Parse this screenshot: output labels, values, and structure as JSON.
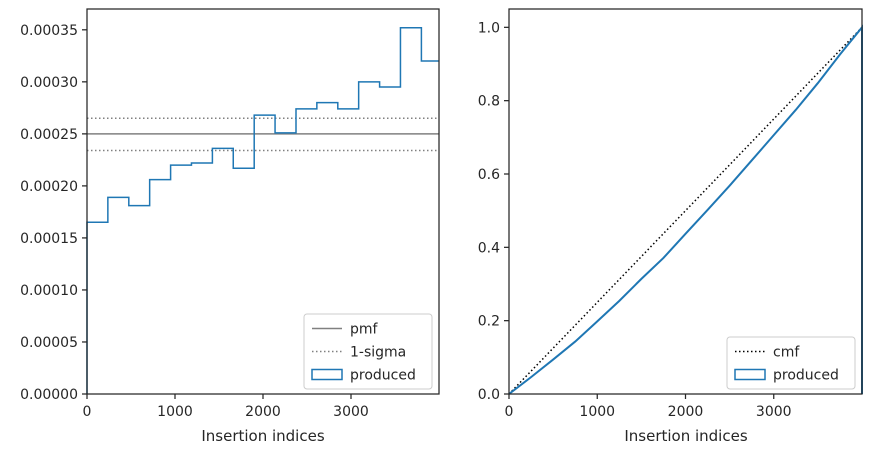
{
  "chart_data": [
    {
      "type": "histogram-step",
      "xlabel": "Insertion indices",
      "ylabel": "",
      "xlim": [
        0,
        4000
      ],
      "ylim": [
        0,
        0.00037
      ],
      "xticks": [
        0,
        1000,
        2000,
        3000
      ],
      "xtick_labels": [
        "0",
        "1000",
        "2000",
        "3000"
      ],
      "yticks": [
        0,
        5e-05,
        0.0001,
        0.00015,
        0.0002,
        0.00025,
        0.0003,
        0.00035
      ],
      "ytick_labels": [
        "0.00000",
        "0.00005",
        "0.00010",
        "0.00015",
        "0.00020",
        "0.00025",
        "0.00030",
        "0.00035"
      ],
      "grid": false,
      "legend": {
        "placement": "lower-right",
        "entries": [
          {
            "label": "pmf",
            "style": "solid",
            "color": "#808080"
          },
          {
            "label": "1-sigma",
            "style": "dotted",
            "color": "#808080"
          },
          {
            "label": "produced",
            "style": "step",
            "color": "#1f77b4"
          }
        ]
      },
      "reference_lines": {
        "pmf": 0.00025,
        "sigma_upper": 0.000265,
        "sigma_lower": 0.000234
      },
      "bin_edges": [
        0,
        237,
        475,
        712,
        950,
        1187,
        1425,
        1662,
        1900,
        2137,
        2375,
        2612,
        2850,
        3087,
        3325,
        3562,
        3800,
        4000
      ],
      "series": [
        {
          "name": "produced",
          "color": "#1f77b4",
          "values": [
            0.000165,
            0.000189,
            0.000181,
            0.000206,
            0.00022,
            0.000222,
            0.000236,
            0.000217,
            0.000268,
            0.000251,
            0.000274,
            0.00028,
            0.000274,
            0.0003,
            0.000295,
            0.000352,
            0.00032
          ]
        }
      ]
    },
    {
      "type": "line",
      "xlabel": "Insertion indices",
      "ylabel": "",
      "xlim": [
        0,
        4000
      ],
      "ylim": [
        0,
        1.05
      ],
      "xticks": [
        0,
        1000,
        2000,
        3000
      ],
      "xtick_labels": [
        "0",
        "1000",
        "2000",
        "3000"
      ],
      "yticks": [
        0,
        0.2,
        0.4,
        0.6,
        0.8,
        1.0
      ],
      "ytick_labels": [
        "0.0",
        "0.2",
        "0.4",
        "0.6",
        "0.8",
        "1.0"
      ],
      "grid": false,
      "legend": {
        "placement": "lower-right",
        "entries": [
          {
            "label": "cmf",
            "style": "dotted",
            "color": "#000000"
          },
          {
            "label": "produced",
            "style": "step",
            "color": "#1f77b4"
          }
        ]
      },
      "series": [
        {
          "name": "cmf",
          "color": "#000000",
          "style": "dotted",
          "x": [
            0,
            4000
          ],
          "y": [
            0,
            1.0
          ]
        },
        {
          "name": "produced",
          "color": "#1f77b4",
          "x": [
            0,
            250,
            500,
            750,
            1000,
            1250,
            1500,
            1750,
            2000,
            2250,
            2500,
            2750,
            3000,
            3250,
            3500,
            3750,
            4000
          ],
          "y": [
            0,
            0.046,
            0.094,
            0.143,
            0.198,
            0.254,
            0.314,
            0.371,
            0.437,
            0.502,
            0.568,
            0.637,
            0.706,
            0.775,
            0.848,
            0.926,
            1.0
          ]
        }
      ]
    }
  ]
}
